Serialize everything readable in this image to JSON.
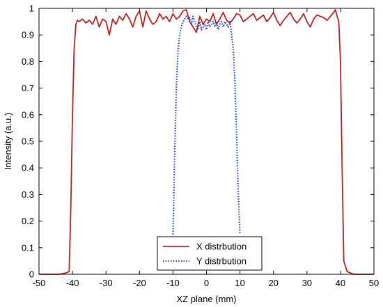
{
  "chart_data": {
    "type": "line",
    "title": "",
    "xlabel": "XZ plane (mm)",
    "ylabel": "Intensity (a.u.)",
    "xlim": [
      -50,
      50
    ],
    "ylim": [
      0,
      1
    ],
    "xticks": [
      -50,
      -40,
      -30,
      -20,
      -10,
      0,
      10,
      20,
      30,
      40,
      50
    ],
    "yticks": [
      0,
      0.1,
      0.2,
      0.3,
      0.4,
      0.5,
      0.6,
      0.7,
      0.8,
      0.9,
      1
    ],
    "grid": false,
    "legend_position": "bottom-center",
    "series": [
      {
        "name": "X distrbution",
        "color": "#b22222",
        "style": "solid",
        "x": [
          -50,
          -48,
          -46,
          -44,
          -42,
          -41,
          -40.5,
          -40,
          -39.5,
          -39,
          -38.5,
          -38,
          -37,
          -36,
          -35,
          -34,
          -33,
          -32,
          -31,
          -30,
          -29,
          -28,
          -27,
          -26,
          -25,
          -24,
          -23,
          -22,
          -21,
          -20,
          -19,
          -18,
          -17,
          -16,
          -15,
          -14,
          -13,
          -12,
          -11,
          -10,
          -9,
          -8,
          -7,
          -6,
          -5,
          -4,
          -3,
          -2,
          -1,
          0,
          1,
          2,
          3,
          4,
          5,
          6,
          7,
          8,
          9,
          10,
          11,
          12,
          13,
          14,
          15,
          16,
          17,
          18,
          19,
          20,
          21,
          22,
          23,
          24,
          25,
          26,
          27,
          28,
          29,
          30,
          31,
          32,
          33,
          34,
          35,
          36,
          37,
          38,
          38.5,
          39,
          39.5,
          40,
          40.5,
          41,
          42,
          44,
          46,
          48,
          50
        ],
        "y": [
          0,
          0,
          0,
          0,
          0.005,
          0.01,
          0.25,
          0.6,
          0.85,
          0.94,
          0.955,
          0.95,
          0.96,
          0.945,
          0.955,
          0.94,
          0.97,
          0.93,
          0.96,
          0.95,
          0.9,
          0.96,
          0.94,
          0.97,
          0.955,
          0.98,
          0.96,
          0.93,
          0.97,
          0.99,
          0.93,
          0.99,
          0.96,
          0.94,
          0.95,
          0.98,
          0.96,
          0.97,
          0.95,
          0.98,
          0.96,
          0.97,
          0.99,
          0.995,
          0.95,
          0.93,
          0.91,
          0.97,
          0.94,
          0.96,
          0.95,
          0.98,
          0.94,
          0.96,
          0.985,
          0.955,
          0.945,
          0.96,
          0.98,
          0.975,
          0.95,
          0.96,
          0.97,
          0.98,
          0.955,
          0.965,
          0.975,
          0.95,
          0.965,
          0.985,
          0.955,
          0.935,
          0.955,
          0.97,
          0.985,
          0.96,
          0.945,
          0.96,
          0.98,
          0.95,
          0.93,
          0.96,
          0.975,
          0.97,
          0.965,
          0.955,
          0.97,
          0.985,
          0.995,
          0.97,
          0.95,
          0.8,
          0.4,
          0.05,
          0.01,
          0,
          0,
          0,
          0
        ]
      },
      {
        "name": "Y distrbution",
        "color": "#1f3fbf",
        "style": "dotted",
        "x": [
          -10,
          -9.5,
          -9,
          -8.5,
          -8,
          -7.5,
          -7,
          -6.5,
          -6,
          -5.5,
          -5,
          -4.5,
          -4,
          -3.5,
          -3,
          -2.5,
          -2,
          -1.5,
          -1,
          -0.5,
          0,
          0.5,
          1,
          1.5,
          2,
          2.5,
          3,
          3.5,
          4,
          4.5,
          5,
          5.5,
          6,
          6.5,
          7,
          7.5,
          8,
          8.5,
          9,
          9.5,
          10
        ],
        "y": [
          0.15,
          0.45,
          0.7,
          0.84,
          0.9,
          0.93,
          0.95,
          0.96,
          0.97,
          0.96,
          0.965,
          0.94,
          0.97,
          0.95,
          0.93,
          0.92,
          0.95,
          0.92,
          0.93,
          0.94,
          0.92,
          0.95,
          0.93,
          0.94,
          0.95,
          0.93,
          0.95,
          0.92,
          0.94,
          0.95,
          0.93,
          0.95,
          0.94,
          0.93,
          0.95,
          0.9,
          0.85,
          0.72,
          0.52,
          0.3,
          0.15
        ]
      }
    ]
  }
}
